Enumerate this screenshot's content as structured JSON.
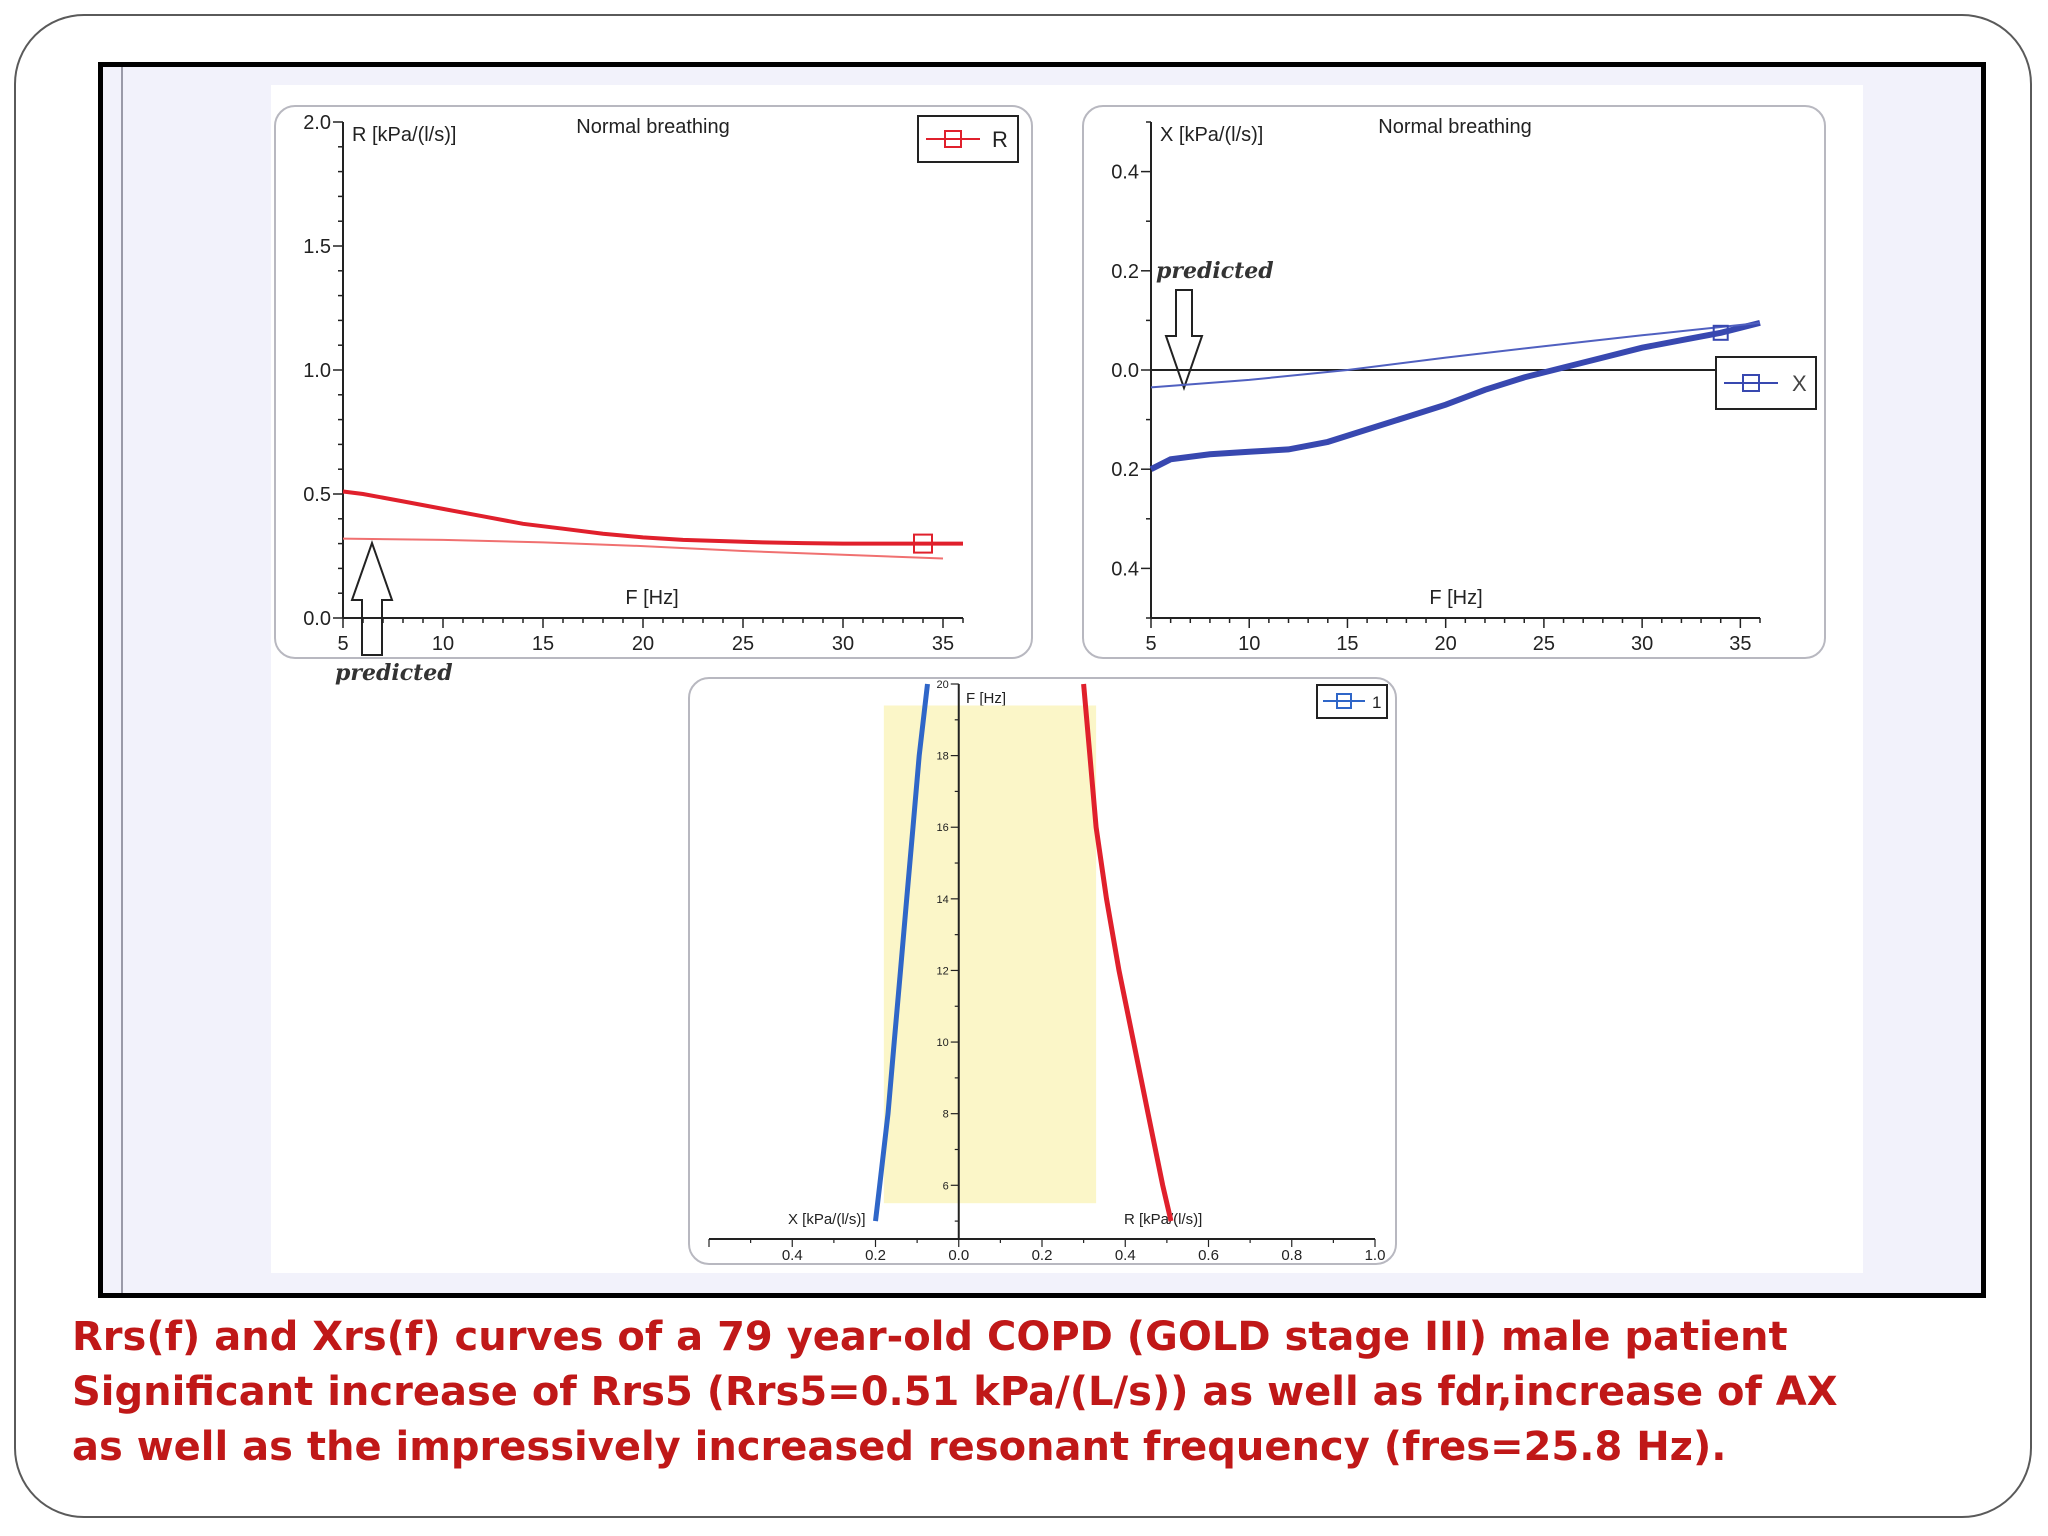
{
  "charts": [
    {
      "id": "resistance",
      "type": "line",
      "title": "Normal breathing",
      "ylabel": "R [kPa/(l/s)]",
      "xlabel": "F [Hz]",
      "xlim": [
        5,
        36
      ],
      "ylim": [
        0,
        2.0
      ],
      "xticks": [
        "5",
        "10",
        "15",
        "20",
        "25",
        "30",
        "35"
      ],
      "yticks": [
        "0.0",
        "0.5",
        "1.0",
        "1.5",
        "2.0"
      ],
      "legend": "R",
      "legend_position": "top-right",
      "annotation": "predicted",
      "series": [
        {
          "color": "#e0202c",
          "x": [
            5,
            6,
            8,
            10,
            12,
            14,
            16,
            18,
            20,
            22,
            24,
            26,
            28,
            30,
            32,
            34,
            36
          ],
          "y": [
            0.51,
            0.5,
            0.47,
            0.44,
            0.41,
            0.38,
            0.36,
            0.34,
            0.325,
            0.315,
            0.31,
            0.305,
            0.302,
            0.3,
            0.3,
            0.3,
            0.3
          ]
        },
        {
          "color": "#f07070",
          "x": [
            5,
            10,
            15,
            20,
            25,
            30,
            35
          ],
          "y": [
            0.32,
            0.315,
            0.305,
            0.29,
            0.27,
            0.255,
            0.24
          ]
        }
      ]
    },
    {
      "id": "reactance",
      "type": "line",
      "title": "Normal breathing",
      "ylabel": "X [kPa/(l/s)]",
      "xlabel": "F [Hz]",
      "xlim": [
        5,
        36
      ],
      "ylim": [
        -0.5,
        0.5
      ],
      "xticks": [
        "5",
        "10",
        "15",
        "20",
        "25",
        "30",
        "35"
      ],
      "yticks": [
        "0.4",
        "0.2",
        "0.0",
        "0.2",
        "0.4"
      ],
      "legend": "X",
      "legend_position": "right",
      "annotation": "predicted",
      "series": [
        {
          "color": "#3848b0",
          "x": [
            5,
            6,
            8,
            10,
            12,
            14,
            16,
            18,
            20,
            22,
            24,
            26,
            28,
            30,
            32,
            34,
            36
          ],
          "y": [
            -0.2,
            -0.18,
            -0.17,
            -0.165,
            -0.16,
            -0.145,
            -0.12,
            -0.095,
            -0.07,
            -0.04,
            -0.015,
            0.005,
            0.025,
            0.045,
            0.06,
            0.075,
            0.095
          ]
        },
        {
          "color": "#5060c0",
          "x": [
            5,
            10,
            15,
            20,
            25,
            30,
            36
          ],
          "y": [
            -0.035,
            -0.02,
            0.0,
            0.025,
            0.048,
            0.07,
            0.095
          ]
        }
      ]
    },
    {
      "id": "rx-vs-f",
      "type": "area",
      "xlabel_x": "X [kPa/(l/s)]",
      "xlabel_r": "R [kPa/(l/s)]",
      "ylabel": "F [Hz]",
      "xlim": [
        -0.6,
        1.0
      ],
      "ylim": [
        4.5,
        20
      ],
      "xticks": [
        "0.4",
        "0.2",
        "0.0",
        "0.2",
        "0.4",
        "0.6",
        "0.8",
        "1.0"
      ],
      "yticks": [
        "6",
        "8",
        "10",
        "12",
        "14",
        "16",
        "18",
        "20"
      ],
      "legend": "1",
      "legend_position": "top-right",
      "x_curve": {
        "color": "#2f66c8",
        "f": [
          5,
          6,
          8,
          10,
          12,
          14,
          16,
          18,
          20
        ],
        "v": [
          -0.2,
          -0.19,
          -0.17,
          -0.155,
          -0.14,
          -0.125,
          -0.11,
          -0.095,
          -0.075
        ]
      },
      "r_curve": {
        "color": "#e0202c",
        "f": [
          5,
          6,
          8,
          10,
          12,
          14,
          16,
          18,
          20
        ],
        "v": [
          0.51,
          0.49,
          0.455,
          0.42,
          0.385,
          0.355,
          0.33,
          0.315,
          0.3
        ]
      }
    }
  ],
  "caption": {
    "line1": "Rrs(f) and Xrs(f) curves of a 79 year-old COPD (GOLD stage III) male patient",
    "line2": "Significant increase of Rrs5 (Rrs5=0.51 kPa/(L/s)) as well as fdr,increase of AX",
    "line3": "as well as the impressively increased resonant frequency (fres=25.8 Hz)."
  },
  "colors": {
    "caption": "#c01818",
    "frame": "#000000"
  }
}
